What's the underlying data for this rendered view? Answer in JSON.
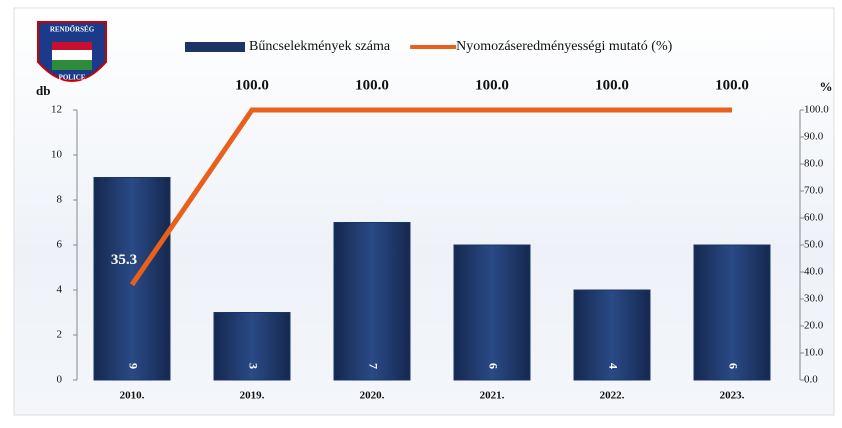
{
  "logo": {
    "top": "RENDŐRSÉG",
    "bottom": "POLICE"
  },
  "chart_data": {
    "type": "bar",
    "categories": [
      "2010.",
      "2019.",
      "2020.",
      "2021.",
      "2022.",
      "2023."
    ],
    "series": [
      {
        "name": "Bűncselekmények száma",
        "type": "bar",
        "color": "#1c3566",
        "values": [
          9,
          3,
          7,
          6,
          4,
          6
        ]
      },
      {
        "name": "Nyomozáseredményességi mutató (%)",
        "type": "line",
        "axis": "y2",
        "color": "#e8601c",
        "values": [
          35.3,
          100,
          100,
          100,
          100,
          100
        ],
        "value_labels": [
          "35.3",
          "100.0",
          "100.0",
          "100.0",
          "100.0",
          "100.0"
        ]
      }
    ],
    "ylabel": "db",
    "y2label": "%",
    "ylim": [
      0,
      12
    ],
    "yticks": [
      0,
      2,
      4,
      6,
      8,
      10,
      12
    ],
    "y2lim": [
      0,
      100
    ],
    "y2ticks": [
      {
        "value": 0,
        "label": "0.0"
      },
      {
        "value": 10,
        "label": "10.0"
      },
      {
        "value": 20,
        "label": "20.0"
      },
      {
        "value": 30,
        "label": "30.0"
      },
      {
        "value": 40,
        "label": "40.0"
      },
      {
        "value": 50,
        "label": "50.0"
      },
      {
        "value": 60,
        "label": "60.0"
      },
      {
        "value": 70,
        "label": "70.0"
      },
      {
        "value": 80,
        "label": "80.0"
      },
      {
        "value": 90,
        "label": "90.0"
      },
      {
        "value": 100,
        "label": "100.0"
      }
    ]
  }
}
